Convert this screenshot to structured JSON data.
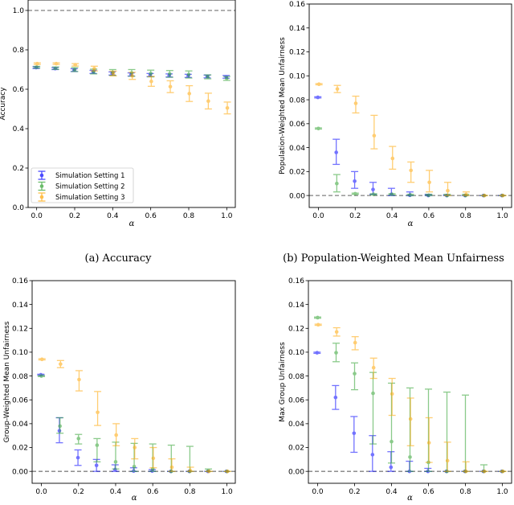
{
  "chart_data": [
    {
      "type": "scatter",
      "caption": "(a) Accuracy",
      "xlabel": "α",
      "ylabel": "Accuracy",
      "xlim": [
        -0.045,
        1.045
      ],
      "ylim": [
        0,
        1.053
      ],
      "xticks": [
        "0.0",
        "0.2",
        "0.4",
        "0.6",
        "0.8",
        "1.0"
      ],
      "yticks": [
        "0.0",
        "0.2",
        "0.4",
        "0.6",
        "0.8",
        "1.0"
      ],
      "reference_line": 1.0,
      "legend": "lower-left",
      "x": [
        0,
        0.1,
        0.2,
        0.3,
        0.4,
        0.5,
        0.6,
        0.7,
        0.8,
        0.9,
        1.0
      ],
      "series": [
        {
          "name": "Simulation Setting 1",
          "color": "#0000ff",
          "values": [
            0.71,
            0.705,
            0.697,
            0.688,
            0.68,
            0.675,
            0.672,
            0.67,
            0.668,
            0.665,
            0.663
          ],
          "err": [
            0.005,
            0.005,
            0.007,
            0.008,
            0.008,
            0.008,
            0.008,
            0.008,
            0.008,
            0.007,
            0.007
          ]
        },
        {
          "name": "Simulation Setting 2",
          "color": "#2ca02c",
          "values": [
            0.712,
            0.707,
            0.7,
            0.69,
            0.685,
            0.683,
            0.68,
            0.678,
            0.675,
            0.663,
            0.655
          ],
          "err": [
            0.004,
            0.006,
            0.01,
            0.012,
            0.015,
            0.017,
            0.017,
            0.017,
            0.018,
            0.01,
            0.01
          ]
        },
        {
          "name": "Simulation Setting 3",
          "color": "#ffa500",
          "values": [
            0.73,
            0.73,
            0.724,
            0.705,
            0.68,
            0.668,
            0.64,
            0.613,
            0.578,
            0.54,
            0.505
          ],
          "err": [
            0.004,
            0.004,
            0.006,
            0.012,
            0.012,
            0.018,
            0.025,
            0.03,
            0.04,
            0.04,
            0.03
          ]
        }
      ]
    },
    {
      "type": "scatter",
      "caption": "(b) Population-Weighted Mean Unfairness",
      "xlabel": "α",
      "ylabel": "Population-Weighted Mean Unfairness",
      "xlim": [
        -0.05,
        1.05
      ],
      "ylim": [
        -0.01,
        0.16
      ],
      "xticks": [
        "0.0",
        "0.2",
        "0.4",
        "0.6",
        "0.8",
        "1.0"
      ],
      "yticks": [
        "0.00",
        "0.02",
        "0.04",
        "0.06",
        "0.08",
        "0.10",
        "0.12",
        "0.14",
        "0.16"
      ],
      "reference_line": 0.0,
      "x": [
        0,
        0.1,
        0.2,
        0.3,
        0.4,
        0.5,
        0.6,
        0.7,
        0.8,
        0.9,
        1.0
      ],
      "series": [
        {
          "name": "Simulation Setting 1",
          "color": "#0000ff",
          "values": [
            0.082,
            0.036,
            0.012,
            0.005,
            0.001,
            0.0002,
            0,
            0,
            0,
            0,
            0
          ],
          "lo": [
            0.0815,
            0.026,
            0.006,
            0.001,
            0,
            0,
            0,
            0,
            0,
            0,
            0
          ],
          "hi": [
            0.0825,
            0.047,
            0.02,
            0.011,
            0.006,
            0.003,
            0.001,
            0.0005,
            0,
            0,
            0
          ]
        },
        {
          "name": "Simulation Setting 2",
          "color": "#2ca02c",
          "values": [
            0.056,
            0.01,
            0.0015,
            0.001,
            0.001,
            0.0005,
            0.0002,
            0,
            0,
            0,
            0
          ],
          "lo": [
            0.0555,
            0.003,
            0.001,
            0.0005,
            0.0005,
            0,
            0,
            0,
            0,
            0,
            0
          ],
          "hi": [
            0.0565,
            0.0175,
            0.002,
            0.0015,
            0.0015,
            0.001,
            0.001,
            0.001,
            0.001,
            0,
            0
          ]
        },
        {
          "name": "Simulation Setting 3",
          "color": "#ffa500",
          "values": [
            0.093,
            0.089,
            0.077,
            0.05,
            0.031,
            0.021,
            0.011,
            0.004,
            0.0008,
            0,
            0
          ],
          "lo": [
            0.0925,
            0.086,
            0.069,
            0.039,
            0.022,
            0.011,
            0.003,
            0,
            0,
            0,
            0
          ],
          "hi": [
            0.0935,
            0.092,
            0.083,
            0.067,
            0.041,
            0.028,
            0.021,
            0.011,
            0.003,
            0,
            0
          ]
        }
      ]
    },
    {
      "type": "scatter",
      "caption": "",
      "xlabel": "α",
      "ylabel": "Group-Weighted Mean Unfairness",
      "xlim": [
        -0.05,
        1.045
      ],
      "ylim": [
        -0.01,
        0.16
      ],
      "xticks": [
        "0.0",
        "0.2",
        "0.4",
        "0.6",
        "0.8",
        "1.0"
      ],
      "yticks": [
        "0.00",
        "0.02",
        "0.04",
        "0.06",
        "0.08",
        "0.10",
        "0.12",
        "0.14",
        "0.16"
      ],
      "reference_line": 0.0,
      "x": [
        0,
        0.1,
        0.2,
        0.3,
        0.4,
        0.5,
        0.6,
        0.7,
        0.8,
        0.9,
        1.0
      ],
      "series": [
        {
          "name": "Simulation Setting 1",
          "color": "#0000ff",
          "values": [
            0.081,
            0.034,
            0.0115,
            0.005,
            0.0015,
            0.0003,
            0.0003,
            0,
            0,
            0,
            0
          ],
          "lo": [
            0.0805,
            0.024,
            0.005,
            0,
            0,
            0,
            0,
            0,
            0,
            0,
            0
          ],
          "hi": [
            0.0815,
            0.045,
            0.018,
            0.01,
            0.0055,
            0.003,
            0.0015,
            0,
            0,
            0,
            0
          ]
        },
        {
          "name": "Simulation Setting 2",
          "color": "#2ca02c",
          "values": [
            0.08,
            0.038,
            0.0275,
            0.022,
            0.008,
            0.004,
            0.002,
            0,
            0,
            0.0005,
            0
          ],
          "lo": [
            0.0795,
            0.032,
            0.023,
            0.008,
            0.002,
            0,
            0,
            0,
            0,
            0,
            0
          ],
          "hi": [
            0.0805,
            0.045,
            0.031,
            0.0275,
            0.0245,
            0.0235,
            0.023,
            0.022,
            0.021,
            0.002,
            0
          ]
        },
        {
          "name": "Simulation Setting 3",
          "color": "#ffa500",
          "values": [
            0.094,
            0.09,
            0.077,
            0.0495,
            0.0305,
            0.02,
            0.011,
            0.0035,
            0.0005,
            0,
            0
          ],
          "lo": [
            0.0935,
            0.087,
            0.0675,
            0.0385,
            0.0215,
            0.0105,
            0.003,
            0,
            0,
            0,
            0
          ],
          "hi": [
            0.0945,
            0.093,
            0.0845,
            0.067,
            0.04,
            0.0275,
            0.02,
            0.0105,
            0.0035,
            0,
            0
          ]
        }
      ]
    },
    {
      "type": "scatter",
      "caption": "",
      "xlabel": "α",
      "ylabel": "Max Group Unfairness",
      "xlim": [
        -0.05,
        1.05
      ],
      "ylim": [
        -0.01,
        0.16
      ],
      "xticks": [
        "0.0",
        "0.2",
        "0.4",
        "0.6",
        "0.8",
        "1.0"
      ],
      "yticks": [
        "0.00",
        "0.02",
        "0.04",
        "0.06",
        "0.08",
        "0.10",
        "0.12",
        "0.14",
        "0.16"
      ],
      "reference_line": 0.0,
      "x": [
        0,
        0.1,
        0.2,
        0.3,
        0.4,
        0.5,
        0.6,
        0.7,
        0.8,
        0.9,
        1.0
      ],
      "series": [
        {
          "name": "Simulation Setting 1",
          "color": "#0000ff",
          "values": [
            0.0995,
            0.062,
            0.032,
            0.014,
            0.0035,
            0,
            0,
            0,
            0,
            0,
            0
          ],
          "lo": [
            0.099,
            0.052,
            0.016,
            0,
            0,
            0,
            0,
            0,
            0,
            0,
            0
          ],
          "hi": [
            0.1,
            0.072,
            0.046,
            0.03,
            0.0165,
            0.0085,
            0.0025,
            0,
            0,
            0,
            0
          ]
        },
        {
          "name": "Simulation Setting 2",
          "color": "#2ca02c",
          "values": [
            0.129,
            0.0995,
            0.082,
            0.0655,
            0.025,
            0.012,
            0.0075,
            0,
            0,
            0,
            0
          ],
          "lo": [
            0.1285,
            0.092,
            0.0685,
            0.023,
            0.007,
            0,
            0,
            0,
            0,
            0,
            0
          ],
          "hi": [
            0.1295,
            0.1075,
            0.091,
            0.083,
            0.074,
            0.07,
            0.069,
            0.0665,
            0.064,
            0.0055,
            0
          ]
        },
        {
          "name": "Simulation Setting 3",
          "color": "#ffa500",
          "values": [
            0.123,
            0.117,
            0.108,
            0.087,
            0.065,
            0.044,
            0.024,
            0.009,
            0,
            0,
            0
          ],
          "lo": [
            0.1225,
            0.1135,
            0.102,
            0.078,
            0.047,
            0.0215,
            0.0075,
            0,
            0,
            0,
            0
          ],
          "hi": [
            0.1235,
            0.1205,
            0.113,
            0.095,
            0.078,
            0.0615,
            0.045,
            0.0245,
            0.008,
            0,
            0
          ]
        }
      ]
    }
  ]
}
